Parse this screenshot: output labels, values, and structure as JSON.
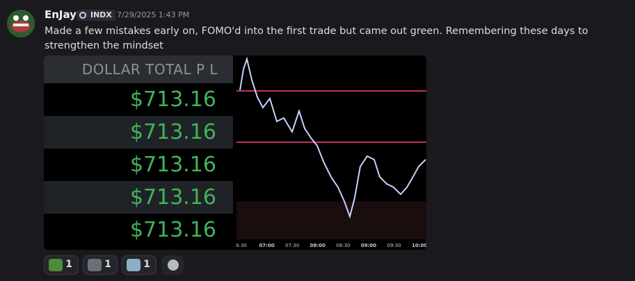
{
  "message": {
    "author": "EnJay",
    "tag": "INDX",
    "timestamp": "7/29/2025 1:43 PM",
    "text": "Made a few mistakes early on, FOMO'd into the first trade but came out green. Remembering these days to strengthen the mindset"
  },
  "attachment": {
    "pl_header": "DOLLAR TOTAL P L",
    "pl_rows": [
      "$713.16",
      "$713.16",
      "$713.16",
      "$713.16",
      "$713.16"
    ],
    "time_labels": [
      "6:30",
      "07:00",
      "07:30",
      "08:00",
      "08:30",
      "09:00",
      "09:30",
      "10:00"
    ]
  },
  "reactions": [
    {
      "count": 1
    },
    {
      "count": 1
    },
    {
      "count": 1
    }
  ]
}
